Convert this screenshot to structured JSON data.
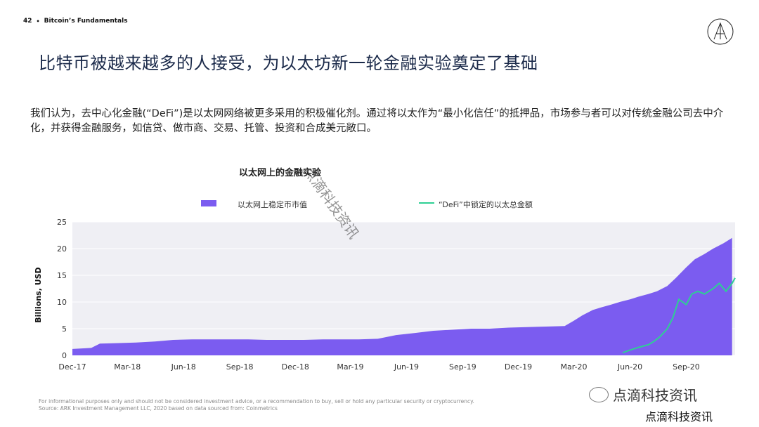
{
  "header": {
    "page_number": "42",
    "separator": "•",
    "section": "Bitcoin’s Fundamentals"
  },
  "title": "比特币被越来越多的人接受，为以太坊新一轮金融实验奠定了基础",
  "body_text": "我们认为，去中心化金融(“DeFi”)是以太网网络被更多采用的积极催化剂。通过将以太作为“最小化信任”的抵押品，市场参与者可以对传统金融公司去中介化，并获得金融服务，如信贷、做市商、交易、托管、投资和合成美元敞口。",
  "footer": {
    "line1": "For informational purposes only and should not be considered investment advice, or a recommendation to buy, sell or hold any particular security or cryptocurrency.",
    "line2": "Source: ARK Investment Management LLC, 2020 based on data sourced from: Coinmetrics"
  },
  "watermarks": {
    "diagonal": "点滴科技资讯",
    "badge": "点滴科技资讯",
    "bottom": "点滴科技资讯"
  },
  "colors": {
    "stablecoin_area": "#7b5cf0",
    "defi_line": "#2ecf94",
    "chart_bg": "#efeff4"
  },
  "chart_data": {
    "type": "area",
    "title": "以太网上的金融实验",
    "ylabel": "Billions, USD",
    "ylim": [
      0,
      25
    ],
    "yticks": [
      "0",
      "5",
      "10",
      "15",
      "20",
      "25"
    ],
    "xticks": [
      "Dec-17",
      "Mar-18",
      "Jun-18",
      "Sep-18",
      "Dec-18",
      "Mar-19",
      "Jun-19",
      "Sep-19",
      "Dec-19",
      "Mar-20",
      "Jun-20",
      "Sep-20"
    ],
    "legend_position": "top",
    "series": [
      {
        "name": "以太网上稳定币市值",
        "kind": "area",
        "x": [
          "2017-12-01",
          "2018-01-01",
          "2018-01-15",
          "2018-02-15",
          "2018-03-15",
          "2018-04-15",
          "2018-05-15",
          "2018-06-15",
          "2018-07-15",
          "2018-08-15",
          "2018-09-15",
          "2018-10-15",
          "2018-11-15",
          "2018-12-15",
          "2019-01-15",
          "2019-02-15",
          "2019-03-15",
          "2019-04-15",
          "2019-05-15",
          "2019-06-15",
          "2019-07-15",
          "2019-08-15",
          "2019-09-15",
          "2019-10-15",
          "2019-11-15",
          "2019-12-15",
          "2020-01-15",
          "2020-02-15",
          "2020-03-01",
          "2020-03-15",
          "2020-04-01",
          "2020-04-15",
          "2020-05-01",
          "2020-05-15",
          "2020-06-01",
          "2020-06-15",
          "2020-07-01",
          "2020-07-15",
          "2020-08-01",
          "2020-08-15",
          "2020-09-01",
          "2020-09-15",
          "2020-10-01",
          "2020-10-15",
          "2020-11-01",
          "2020-11-15"
        ],
        "values": [
          1.2,
          1.4,
          2.2,
          2.3,
          2.4,
          2.6,
          2.9,
          3.0,
          3.0,
          3.0,
          3.0,
          2.9,
          2.9,
          2.9,
          3.0,
          3.0,
          3.0,
          3.1,
          3.8,
          4.2,
          4.6,
          4.8,
          5.0,
          5.0,
          5.2,
          5.3,
          5.4,
          5.5,
          6.5,
          7.5,
          8.5,
          9.0,
          9.5,
          10.0,
          10.5,
          11.0,
          11.5,
          12.0,
          13.0,
          14.5,
          16.5,
          18.0,
          19.0,
          20.0,
          21.0,
          22.0
        ]
      },
      {
        "name": "“DeFi”中锁定的以太总金额",
        "kind": "line",
        "x": [
          "2020-05-20",
          "2020-06-01",
          "2020-06-15",
          "2020-07-01",
          "2020-07-10",
          "2020-07-20",
          "2020-08-01",
          "2020-08-10",
          "2020-08-20",
          "2020-09-01",
          "2020-09-10",
          "2020-09-20",
          "2020-10-01",
          "2020-10-15",
          "2020-10-25",
          "2020-11-05",
          "2020-11-15",
          "2020-11-20"
        ],
        "values": [
          0.5,
          1.0,
          1.5,
          2.0,
          2.6,
          3.5,
          5.0,
          7.0,
          10.5,
          9.5,
          11.5,
          12.0,
          11.5,
          12.5,
          13.5,
          12.0,
          13.5,
          14.5
        ]
      }
    ]
  }
}
